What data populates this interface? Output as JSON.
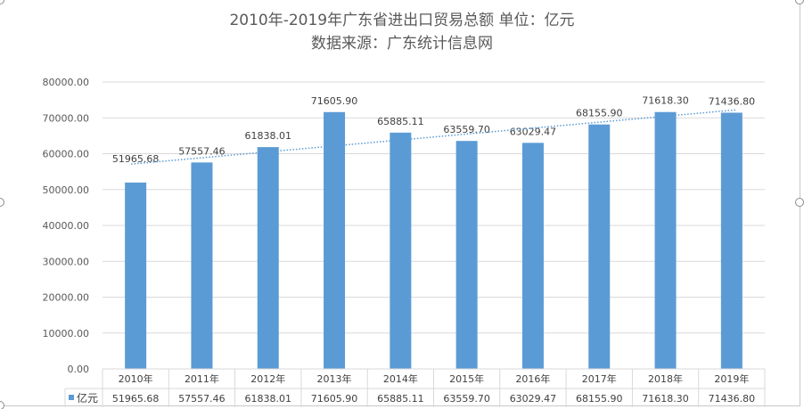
{
  "chart_data": {
    "type": "bar",
    "title": "2010年-2019年广东省进出口贸易总额 单位：亿元",
    "subtitle": "数据来源：广东统计信息网",
    "categories": [
      "2010年",
      "2011年",
      "2012年",
      "2013年",
      "2014年",
      "2015年",
      "2016年",
      "2017年",
      "2018年",
      "2019年"
    ],
    "series": [
      {
        "name": "亿元",
        "values": [
          51965.68,
          57557.46,
          61838.01,
          71605.9,
          65885.11,
          63559.7,
          63029.47,
          68155.9,
          71618.3,
          71436.8
        ],
        "color": "#5b9bd5"
      }
    ],
    "trendline": "linear",
    "ylim": [
      0,
      80000
    ],
    "yticks": [
      "0.00",
      "10000.00",
      "20000.00",
      "30000.00",
      "40000.00",
      "50000.00",
      "60000.00",
      "70000.00",
      "80000.00"
    ],
    "grid": true,
    "data_table": true
  }
}
